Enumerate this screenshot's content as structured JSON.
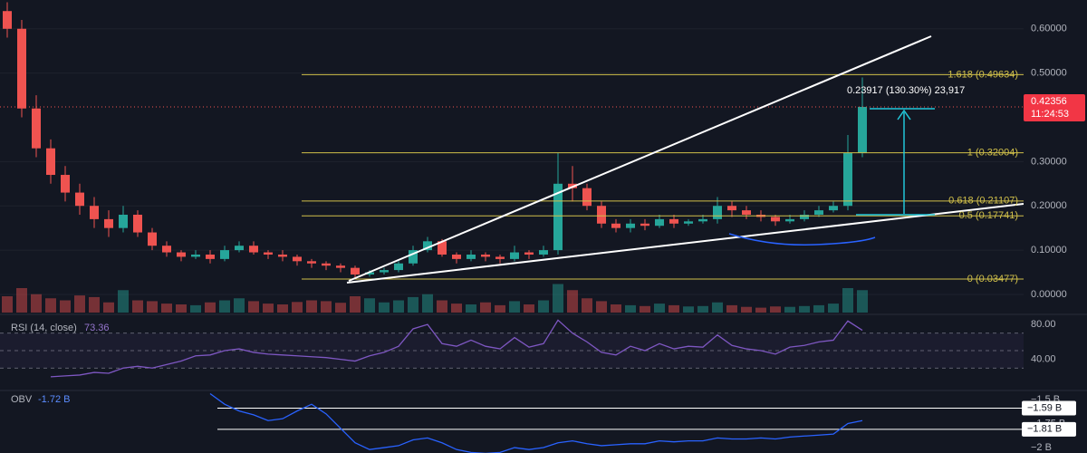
{
  "chart_data": [
    {
      "type": "candlestick",
      "open": [
        0.64,
        0.6,
        0.42,
        0.33,
        0.27,
        0.23,
        0.2,
        0.17,
        0.15,
        0.18,
        0.14,
        0.11,
        0.095,
        0.085,
        0.09,
        0.08,
        0.1,
        0.11,
        0.095,
        0.09,
        0.085,
        0.075,
        0.07,
        0.065,
        0.06,
        0.045,
        0.05,
        0.055,
        0.07,
        0.1,
        0.12,
        0.09,
        0.08,
        0.09,
        0.085,
        0.08,
        0.095,
        0.09,
        0.1,
        0.25,
        0.24,
        0.2,
        0.16,
        0.15,
        0.16,
        0.155,
        0.17,
        0.16,
        0.165,
        0.17,
        0.2,
        0.19,
        0.18,
        0.175,
        0.165,
        0.17,
        0.18,
        0.19,
        0.2,
        0.32
      ],
      "high": [
        0.66,
        0.62,
        0.45,
        0.35,
        0.29,
        0.25,
        0.22,
        0.19,
        0.2,
        0.19,
        0.15,
        0.12,
        0.1,
        0.1,
        0.1,
        0.11,
        0.12,
        0.12,
        0.1,
        0.1,
        0.09,
        0.08,
        0.075,
        0.07,
        0.065,
        0.055,
        0.06,
        0.075,
        0.11,
        0.13,
        0.125,
        0.095,
        0.1,
        0.095,
        0.09,
        0.11,
        0.1,
        0.11,
        0.32,
        0.29,
        0.25,
        0.21,
        0.17,
        0.17,
        0.17,
        0.18,
        0.18,
        0.17,
        0.18,
        0.22,
        0.21,
        0.2,
        0.19,
        0.18,
        0.18,
        0.19,
        0.2,
        0.21,
        0.36,
        0.49
      ],
      "low": [
        0.58,
        0.4,
        0.31,
        0.25,
        0.21,
        0.18,
        0.15,
        0.13,
        0.14,
        0.13,
        0.1,
        0.085,
        0.075,
        0.08,
        0.07,
        0.075,
        0.095,
        0.09,
        0.08,
        0.075,
        0.065,
        0.06,
        0.055,
        0.05,
        0.035,
        0.04,
        0.045,
        0.05,
        0.065,
        0.095,
        0.085,
        0.07,
        0.075,
        0.075,
        0.07,
        0.075,
        0.08,
        0.085,
        0.09,
        0.21,
        0.19,
        0.15,
        0.14,
        0.14,
        0.145,
        0.15,
        0.15,
        0.155,
        0.16,
        0.16,
        0.175,
        0.17,
        0.165,
        0.155,
        0.16,
        0.165,
        0.175,
        0.185,
        0.19,
        0.31
      ],
      "close": [
        0.6,
        0.42,
        0.33,
        0.27,
        0.23,
        0.2,
        0.17,
        0.15,
        0.18,
        0.14,
        0.11,
        0.095,
        0.085,
        0.09,
        0.08,
        0.1,
        0.11,
        0.095,
        0.09,
        0.085,
        0.075,
        0.07,
        0.065,
        0.06,
        0.045,
        0.05,
        0.055,
        0.07,
        0.1,
        0.12,
        0.09,
        0.08,
        0.09,
        0.085,
        0.08,
        0.095,
        0.09,
        0.1,
        0.25,
        0.24,
        0.2,
        0.16,
        0.15,
        0.16,
        0.155,
        0.17,
        0.16,
        0.165,
        0.17,
        0.2,
        0.19,
        0.18,
        0.175,
        0.165,
        0.17,
        0.18,
        0.19,
        0.2,
        0.32,
        0.42356
      ],
      "volume": [
        40,
        60,
        45,
        35,
        30,
        42,
        38,
        25,
        55,
        30,
        28,
        22,
        20,
        18,
        25,
        30,
        35,
        28,
        22,
        20,
        26,
        30,
        28,
        24,
        40,
        35,
        25,
        30,
        38,
        45,
        30,
        22,
        20,
        25,
        18,
        28,
        20,
        30,
        70,
        55,
        35,
        28,
        20,
        18,
        16,
        22,
        18,
        15,
        16,
        25,
        18,
        14,
        12,
        15,
        14,
        16,
        18,
        22,
        60,
        55
      ],
      "up_color": "#26a69a",
      "down_color": "#ef5350",
      "ylim": [
        -0.041,
        0.665
      ],
      "yticks": [
        {
          "value": 0,
          "label": "0.00000"
        },
        {
          "value": 0.1,
          "label": "0.10000"
        },
        {
          "value": 0.2,
          "label": "0.20000"
        },
        {
          "value": 0.3,
          "label": "0.30000"
        },
        {
          "value": 0.5,
          "label": "0.50000"
        },
        {
          "value": 0.6,
          "label": "0.60000"
        }
      ],
      "fib_color": "#d1c04a",
      "fib_levels": [
        {
          "value": 0.49634,
          "label": "1.618 (0.49634)"
        },
        {
          "value": 0.32004,
          "label": "1 (0.32004)"
        },
        {
          "value": 0.21107,
          "label": "0.618 (0.21107)"
        },
        {
          "value": 0.17741,
          "label": "0.5 (0.17741)"
        },
        {
          "value": 0.03477,
          "label": "0 (0.03477)"
        }
      ],
      "last_price": 0.42356,
      "countdown": "11:24:53",
      "measure_label": "0.23917 (130.30%) 23,917"
    },
    {
      "type": "line",
      "title": "RSI (14, close)",
      "current": 73.36,
      "color": "#7e57c2",
      "values": [
        null,
        null,
        null,
        20,
        21,
        22,
        25,
        24,
        30,
        32,
        30,
        34,
        38,
        44,
        45,
        50,
        52,
        48,
        46,
        45,
        44,
        43,
        42,
        40,
        38,
        44,
        48,
        55,
        75,
        80,
        58,
        55,
        62,
        55,
        52,
        65,
        54,
        58,
        85,
        70,
        60,
        48,
        45,
        55,
        50,
        58,
        52,
        55,
        54,
        68,
        56,
        52,
        50,
        46,
        54,
        56,
        60,
        62,
        84,
        73.36
      ],
      "ylim": [
        5.3,
        89.5
      ],
      "yticks": [
        {
          "value": 80,
          "label": "80.00"
        },
        {
          "value": 40,
          "label": "40.00"
        }
      ],
      "bands": [
        70,
        50,
        30
      ]
    },
    {
      "type": "line",
      "title": "OBV",
      "current": {
        "value": -1.72,
        "label": "-1.72 B"
      },
      "color": "#2962ff",
      "values": [
        null,
        null,
        null,
        null,
        null,
        null,
        null,
        null,
        null,
        null,
        null,
        null,
        null,
        null,
        -1.44,
        -1.55,
        -1.62,
        -1.66,
        -1.72,
        -1.7,
        -1.62,
        -1.55,
        -1.65,
        -1.8,
        -1.95,
        -2.02,
        -2.0,
        -1.98,
        -1.92,
        -1.9,
        -1.95,
        -2.02,
        -2.05,
        -2.06,
        -2.05,
        -2.0,
        -2.02,
        -2.0,
        -1.95,
        -1.93,
        -1.96,
        -1.98,
        -1.97,
        -1.96,
        -1.96,
        -1.93,
        -1.94,
        -1.93,
        -1.93,
        -1.9,
        -1.91,
        -1.91,
        -1.9,
        -1.91,
        -1.89,
        -1.88,
        -1.87,
        -1.86,
        -1.75,
        -1.72
      ],
      "ylim": [
        -2.056,
        -1.426
      ],
      "yticks": [
        {
          "value": -1.5,
          "label": "−1.5 B"
        },
        {
          "value": -1.75,
          "label": "−1.75 B"
        },
        {
          "value": -2,
          "label": "−2 B"
        }
      ],
      "levels": [
        {
          "value": -1.59,
          "label": "−1.59 B"
        },
        {
          "value": -1.81,
          "label": "−1.81 B"
        }
      ]
    }
  ]
}
